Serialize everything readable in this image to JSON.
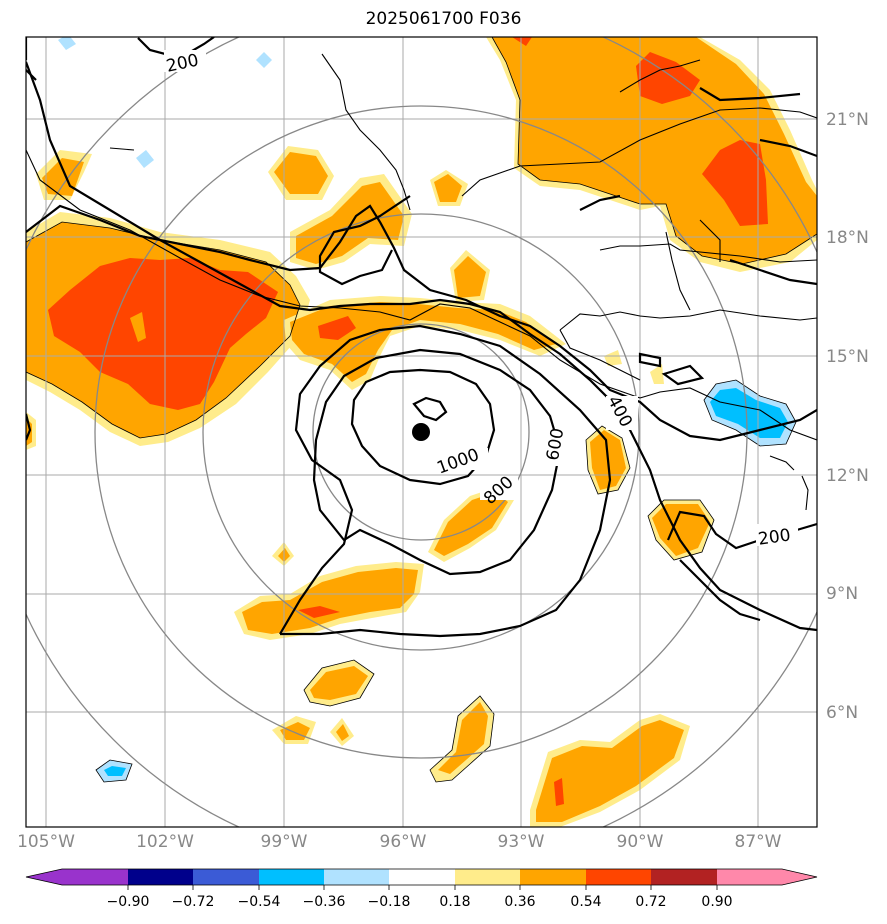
{
  "title": "2025061700 F036",
  "map": {
    "lon_ticks": [
      "105°W",
      "102°W",
      "99°W",
      "96°W",
      "93°W",
      "90°W",
      "87°W"
    ],
    "lat_ticks": [
      "21°N",
      "18°N",
      "15°N",
      "12°N",
      "9°N",
      "6°N"
    ],
    "contour_labels": [
      "200",
      "1000",
      "800",
      "600",
      "400",
      "200"
    ],
    "center_marker": "storm-center-dot"
  },
  "colorbar": {
    "colors": [
      "#9933cc",
      "#00008b",
      "#3b5bd6",
      "#00bfff",
      "#b0e2ff",
      "#ffffff",
      "#ffec8b",
      "#ffa500",
      "#ff4500",
      "#b22222",
      "#ff88aa"
    ],
    "labels": [
      "−0.90",
      "−0.72",
      "−0.54",
      "−0.36",
      "−0.18",
      "0.18",
      "0.36",
      "0.54",
      "0.72",
      "0.90"
    ]
  }
}
